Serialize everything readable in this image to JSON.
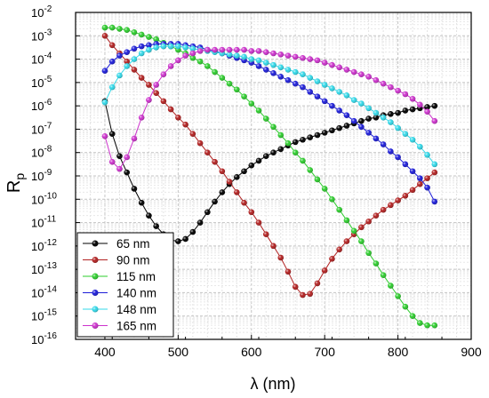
{
  "chart_data": {
    "type": "line",
    "xlabel": "λ (nm)",
    "ylabel": {
      "main": "R",
      "sub": "p"
    },
    "xlim": [
      360,
      900
    ],
    "x_ticks": [
      "400",
      "500",
      "600",
      "700",
      "800",
      "900"
    ],
    "x_tick_values": [
      400,
      500,
      600,
      700,
      800,
      900
    ],
    "y_scale": "log",
    "ylim": [
      1e-16,
      0.01
    ],
    "y_ticks": [
      {
        "base": "10",
        "exp": "-16",
        "value": -16
      },
      {
        "base": "10",
        "exp": "-15",
        "value": -15
      },
      {
        "base": "10",
        "exp": "-14",
        "value": -14
      },
      {
        "base": "10",
        "exp": "-13",
        "value": -13
      },
      {
        "base": "10",
        "exp": "-12",
        "value": -12
      },
      {
        "base": "10",
        "exp": "-11",
        "value": -11
      },
      {
        "base": "10",
        "exp": "-10",
        "value": -10
      },
      {
        "base": "10",
        "exp": "-9",
        "value": -9
      },
      {
        "base": "10",
        "exp": "-8",
        "value": -8
      },
      {
        "base": "10",
        "exp": "-7",
        "value": -7
      },
      {
        "base": "10",
        "exp": "-6",
        "value": -6
      },
      {
        "base": "10",
        "exp": "-5",
        "value": -5
      },
      {
        "base": "10",
        "exp": "-4",
        "value": -4
      },
      {
        "base": "10",
        "exp": "-3",
        "value": -3
      },
      {
        "base": "10",
        "exp": "-2",
        "value": -2
      }
    ],
    "grid": true,
    "legend_position": "bottom-left",
    "x": [
      400,
      410,
      420,
      430,
      440,
      450,
      460,
      470,
      480,
      490,
      500,
      510,
      520,
      530,
      540,
      550,
      560,
      570,
      580,
      590,
      600,
      610,
      620,
      630,
      640,
      650,
      660,
      670,
      680,
      690,
      700,
      710,
      720,
      730,
      740,
      750,
      760,
      770,
      780,
      790,
      800,
      810,
      820,
      830,
      840,
      850
    ],
    "series": [
      {
        "name": "65 nm",
        "color": "#000000",
        "log10_values": [
          -5.8,
          -7.2,
          -8.15,
          -8.85,
          -9.55,
          -10.15,
          -10.7,
          -11.15,
          -11.5,
          -11.75,
          -11.8,
          -11.7,
          -11.4,
          -11.0,
          -10.55,
          -10.1,
          -9.7,
          -9.35,
          -9.05,
          -8.8,
          -8.55,
          -8.35,
          -8.15,
          -8.0,
          -7.85,
          -7.7,
          -7.55,
          -7.45,
          -7.35,
          -7.25,
          -7.15,
          -7.05,
          -6.95,
          -6.85,
          -6.75,
          -6.65,
          -6.55,
          -6.5,
          -6.4,
          -6.35,
          -6.3,
          -6.2,
          -6.15,
          -6.1,
          -6.05,
          -6.0
        ]
      },
      {
        "name": "90 nm",
        "color": "#b22222",
        "log10_values": [
          -3.0,
          -3.4,
          -3.75,
          -4.1,
          -4.45,
          -4.8,
          -5.1,
          -5.45,
          -5.8,
          -6.15,
          -6.5,
          -6.8,
          -7.2,
          -7.6,
          -8.0,
          -8.4,
          -8.8,
          -9.25,
          -9.7,
          -10.15,
          -10.55,
          -11.0,
          -11.5,
          -12.0,
          -12.5,
          -13.1,
          -13.75,
          -14.1,
          -14.05,
          -13.6,
          -13.05,
          -12.55,
          -12.15,
          -11.8,
          -11.5,
          -11.2,
          -10.95,
          -10.7,
          -10.45,
          -10.25,
          -10.05,
          -9.85,
          -9.6,
          -9.35,
          -9.1,
          -8.85
        ]
      },
      {
        "name": "115 nm",
        "color": "#2ecc2e",
        "log10_values": [
          -2.65,
          -2.65,
          -2.7,
          -2.75,
          -2.85,
          -2.95,
          -3.05,
          -3.15,
          -3.3,
          -3.45,
          -3.6,
          -3.75,
          -3.95,
          -4.1,
          -4.3,
          -4.55,
          -4.8,
          -5.05,
          -5.3,
          -5.6,
          -5.9,
          -6.2,
          -6.55,
          -6.9,
          -7.25,
          -7.6,
          -8.0,
          -8.35,
          -8.75,
          -9.15,
          -9.55,
          -10.0,
          -10.45,
          -10.9,
          -11.35,
          -11.8,
          -12.3,
          -12.75,
          -13.25,
          -13.7,
          -14.15,
          -14.6,
          -15.0,
          -15.3,
          -15.4,
          -15.4
        ]
      },
      {
        "name": "140 nm",
        "color": "#1e1ed8",
        "log10_values": [
          -4.5,
          -4.1,
          -3.85,
          -3.7,
          -3.55,
          -3.45,
          -3.4,
          -3.35,
          -3.35,
          -3.35,
          -3.35,
          -3.4,
          -3.45,
          -3.5,
          -3.6,
          -3.65,
          -3.75,
          -3.85,
          -3.95,
          -4.05,
          -4.15,
          -4.3,
          -4.45,
          -4.6,
          -4.75,
          -4.9,
          -5.05,
          -5.2,
          -5.4,
          -5.6,
          -5.8,
          -6.0,
          -6.2,
          -6.4,
          -6.65,
          -6.9,
          -7.15,
          -7.4,
          -7.65,
          -7.95,
          -8.2,
          -8.5,
          -8.8,
          -9.1,
          -9.5,
          -10.1
        ]
      },
      {
        "name": "148 nm",
        "color": "#33d8e8",
        "log10_values": [
          -5.85,
          -5.2,
          -4.7,
          -4.3,
          -4.0,
          -3.75,
          -3.6,
          -3.5,
          -3.45,
          -3.45,
          -3.45,
          -3.5,
          -3.55,
          -3.6,
          -3.65,
          -3.7,
          -3.75,
          -3.8,
          -3.85,
          -3.9,
          -4.0,
          -4.05,
          -4.15,
          -4.25,
          -4.35,
          -4.45,
          -4.55,
          -4.65,
          -4.8,
          -4.95,
          -5.1,
          -5.25,
          -5.4,
          -5.55,
          -5.75,
          -5.9,
          -6.1,
          -6.3,
          -6.5,
          -6.7,
          -6.95,
          -7.2,
          -7.45,
          -7.75,
          -8.1,
          -8.5
        ]
      },
      {
        "name": "165 nm",
        "color": "#cc33cc",
        "log10_values": [
          -7.3,
          -8.4,
          -8.7,
          -8.2,
          -7.4,
          -6.5,
          -5.75,
          -5.1,
          -4.65,
          -4.3,
          -4.05,
          -3.85,
          -3.75,
          -3.65,
          -3.6,
          -3.6,
          -3.6,
          -3.6,
          -3.6,
          -3.6,
          -3.65,
          -3.65,
          -3.7,
          -3.75,
          -3.8,
          -3.85,
          -3.9,
          -3.95,
          -4.0,
          -4.05,
          -4.15,
          -4.25,
          -4.35,
          -4.45,
          -4.55,
          -4.65,
          -4.75,
          -4.9,
          -5.05,
          -5.2,
          -5.35,
          -5.5,
          -5.7,
          -5.95,
          -6.25,
          -6.65
        ]
      }
    ]
  }
}
